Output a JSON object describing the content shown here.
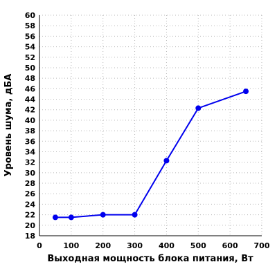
{
  "chart_data": {
    "type": "line",
    "title": "",
    "xlabel": "Выходная мощность блока питания, Вт",
    "ylabel": "Уровень шума, дБА",
    "xlim": [
      0,
      700
    ],
    "ylim": [
      18,
      60
    ],
    "x_ticks": [
      "0",
      "100",
      "200",
      "300",
      "400",
      "500",
      "600",
      "700"
    ],
    "y_ticks": [
      "18",
      "20",
      "22",
      "24",
      "26",
      "28",
      "30",
      "32",
      "34",
      "36",
      "38",
      "40",
      "42",
      "44",
      "46",
      "48",
      "50",
      "52",
      "54",
      "56",
      "58",
      "60"
    ],
    "grid": true,
    "series": [
      {
        "color": "#0000ee",
        "x": [
          50,
          100,
          200,
          300,
          400,
          500,
          650
        ],
        "values": [
          21.5,
          21.5,
          22.0,
          22.0,
          32.3,
          42.3,
          45.5
        ]
      }
    ]
  }
}
